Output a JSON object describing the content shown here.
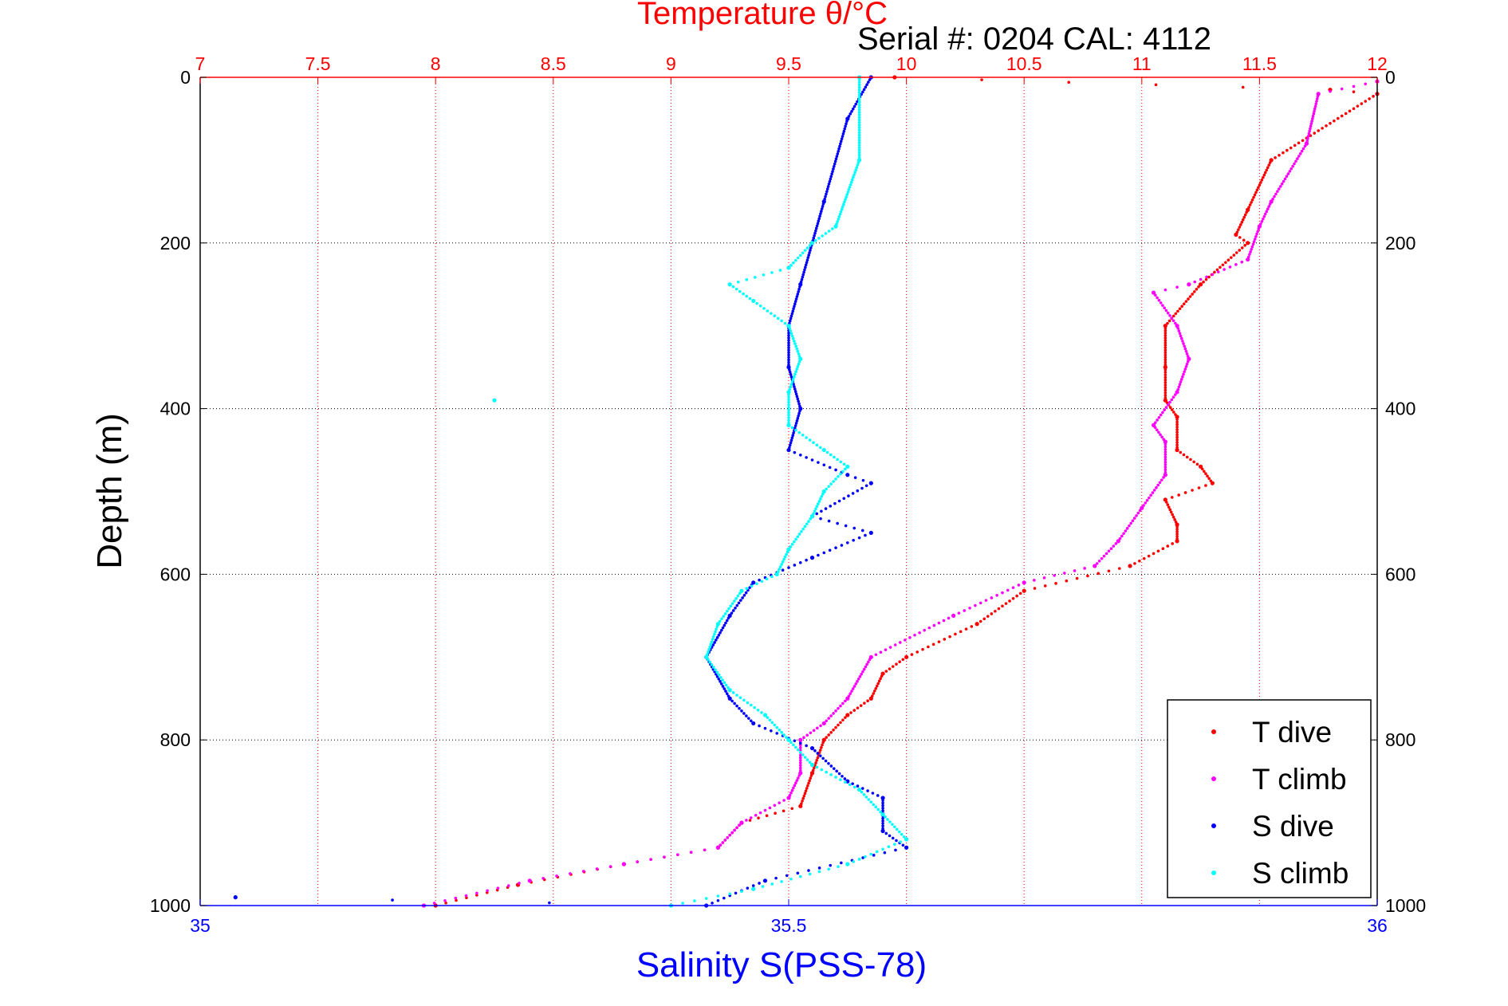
{
  "chart_data": {
    "type": "scatter",
    "title": "Temperature θ/°C",
    "serial_text": "Serial #: 0204  CAL: 4112",
    "ylabel": "Depth (m)",
    "xlabel": "Salinity S(PSS-78)",
    "temperature_axis": {
      "range": [
        7,
        12
      ],
      "ticks": [
        "7",
        "7.5",
        "8",
        "8.5",
        "9",
        "9.5",
        "10",
        "10.5",
        "11",
        "11.5",
        "12"
      ]
    },
    "salinity_axis": {
      "range": [
        35,
        36
      ],
      "ticks": [
        "35",
        "35.5",
        "36"
      ]
    },
    "depth_axis": {
      "range": [
        0,
        1000
      ],
      "reversed": true,
      "ticks": [
        "0",
        "200",
        "400",
        "600",
        "800",
        "1000"
      ]
    },
    "grid": true,
    "legend": {
      "placement": "bottom-right"
    },
    "series": [
      {
        "name": "T dive",
        "variable": "temperature",
        "color": "#ff0000",
        "points": [
          [
            9.95,
            0
          ],
          [
            11.8,
            15
          ],
          [
            12.0,
            20
          ],
          [
            11.55,
            100
          ],
          [
            11.45,
            160
          ],
          [
            11.4,
            190
          ],
          [
            11.45,
            200
          ],
          [
            11.25,
            250
          ],
          [
            11.1,
            300
          ],
          [
            11.1,
            350
          ],
          [
            11.1,
            390
          ],
          [
            11.15,
            410
          ],
          [
            11.15,
            450
          ],
          [
            11.25,
            470
          ],
          [
            11.3,
            490
          ],
          [
            11.1,
            510
          ],
          [
            11.15,
            540
          ],
          [
            11.15,
            560
          ],
          [
            10.95,
            590
          ],
          [
            10.5,
            620
          ],
          [
            10.3,
            660
          ],
          [
            10.0,
            700
          ],
          [
            9.9,
            720
          ],
          [
            9.85,
            750
          ],
          [
            9.75,
            770
          ],
          [
            9.65,
            800
          ],
          [
            9.6,
            840
          ],
          [
            9.55,
            880
          ],
          [
            9.3,
            900
          ],
          [
            9.2,
            930
          ],
          [
            8.8,
            950
          ],
          [
            8.35,
            975
          ],
          [
            8.0,
            1000
          ]
        ]
      },
      {
        "name": "T climb",
        "variable": "temperature",
        "color": "#ff00ff",
        "points": [
          [
            12.0,
            5
          ],
          [
            11.75,
            20
          ],
          [
            11.7,
            80
          ],
          [
            11.55,
            150
          ],
          [
            11.5,
            180
          ],
          [
            11.45,
            220
          ],
          [
            11.2,
            250
          ],
          [
            11.05,
            260
          ],
          [
            11.15,
            300
          ],
          [
            11.2,
            340
          ],
          [
            11.15,
            380
          ],
          [
            11.05,
            420
          ],
          [
            11.1,
            440
          ],
          [
            11.1,
            480
          ],
          [
            11.0,
            520
          ],
          [
            10.9,
            560
          ],
          [
            10.8,
            590
          ],
          [
            10.5,
            610
          ],
          [
            10.2,
            650
          ],
          [
            9.85,
            700
          ],
          [
            9.75,
            750
          ],
          [
            9.65,
            780
          ],
          [
            9.55,
            800
          ],
          [
            9.55,
            840
          ],
          [
            9.5,
            870
          ],
          [
            9.3,
            900
          ],
          [
            9.2,
            930
          ],
          [
            8.8,
            950
          ],
          [
            8.4,
            970
          ],
          [
            7.95,
            1000
          ]
        ]
      },
      {
        "name": "S dive",
        "variable": "salinity",
        "color": "#0000ff",
        "points": [
          [
            35.57,
            0
          ],
          [
            35.55,
            50
          ],
          [
            35.53,
            150
          ],
          [
            35.52,
            200
          ],
          [
            35.51,
            250
          ],
          [
            35.5,
            300
          ],
          [
            35.5,
            350
          ],
          [
            35.51,
            400
          ],
          [
            35.5,
            450
          ],
          [
            35.55,
            480
          ],
          [
            35.57,
            490
          ],
          [
            35.52,
            530
          ],
          [
            35.57,
            550
          ],
          [
            35.52,
            580
          ],
          [
            35.47,
            610
          ],
          [
            35.45,
            650
          ],
          [
            35.43,
            700
          ],
          [
            35.45,
            750
          ],
          [
            35.47,
            780
          ],
          [
            35.52,
            810
          ],
          [
            35.55,
            850
          ],
          [
            35.58,
            870
          ],
          [
            35.58,
            910
          ],
          [
            35.6,
            930
          ],
          [
            35.48,
            970
          ],
          [
            35.43,
            1000
          ],
          [
            35.03,
            990
          ]
        ]
      },
      {
        "name": "S climb",
        "variable": "salinity",
        "color": "#00ffff",
        "points": [
          [
            35.56,
            0
          ],
          [
            35.56,
            100
          ],
          [
            35.54,
            180
          ],
          [
            35.52,
            200
          ],
          [
            35.5,
            230
          ],
          [
            35.45,
            250
          ],
          [
            35.47,
            270
          ],
          [
            35.5,
            300
          ],
          [
            35.51,
            340
          ],
          [
            35.5,
            380
          ],
          [
            35.5,
            420
          ],
          [
            35.53,
            450
          ],
          [
            35.55,
            470
          ],
          [
            35.53,
            500
          ],
          [
            35.52,
            530
          ],
          [
            35.5,
            570
          ],
          [
            35.49,
            600
          ],
          [
            35.46,
            620
          ],
          [
            35.44,
            660
          ],
          [
            35.43,
            700
          ],
          [
            35.45,
            740
          ],
          [
            35.48,
            770
          ],
          [
            35.5,
            800
          ],
          [
            35.52,
            830
          ],
          [
            35.56,
            860
          ],
          [
            35.58,
            890
          ],
          [
            35.6,
            920
          ],
          [
            35.55,
            950
          ],
          [
            35.47,
            980
          ],
          [
            35.4,
            1000
          ],
          [
            35.25,
            390
          ]
        ]
      }
    ]
  }
}
